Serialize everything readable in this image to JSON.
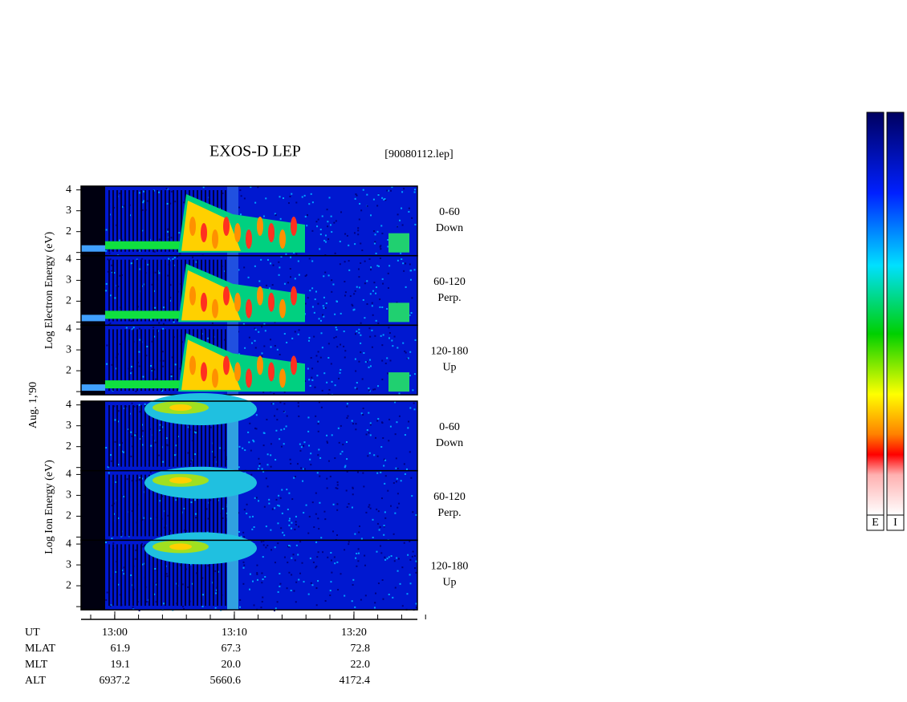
{
  "title": "EXOS-D LEP",
  "file": "[90080112.lep]",
  "date_label": "Aug. 1,'90",
  "electron": {
    "ylabel": "Log Electron Energy (eV)",
    "panels": [
      {
        "range": "0-60",
        "dir": "Down",
        "yticks": [
          4,
          3,
          2
        ]
      },
      {
        "range": "60-120",
        "dir": "Perp.",
        "yticks": [
          4,
          3,
          2
        ]
      },
      {
        "range": "120-180",
        "dir": "Up",
        "yticks": [
          4,
          3,
          2
        ]
      }
    ]
  },
  "ion": {
    "ylabel": "Log Ion Energy (eV)",
    "panels": [
      {
        "range": "0-60",
        "dir": "Down",
        "yticks": [
          4,
          3,
          2
        ]
      },
      {
        "range": "60-120",
        "dir": "Perp.",
        "yticks": [
          4,
          3,
          2
        ]
      },
      {
        "range": "120-180",
        "dir": "Up",
        "yticks": [
          4,
          3,
          2
        ]
      }
    ]
  },
  "time_ticks": [
    "13:00",
    "13:10",
    "13:20"
  ],
  "ephemeris": [
    {
      "name": "UT",
      "values": [
        "13:00",
        "13:10",
        "13:20"
      ]
    },
    {
      "name": "MLAT",
      "values": [
        "61.9",
        "67.3",
        "72.8"
      ]
    },
    {
      "name": "MLT",
      "values": [
        "19.1",
        "20.0",
        "22.0"
      ]
    },
    {
      "name": "ALT",
      "values": [
        "6937.2",
        "5660.6",
        "4172.4"
      ]
    }
  ],
  "colorbars": [
    "E",
    "I"
  ]
}
